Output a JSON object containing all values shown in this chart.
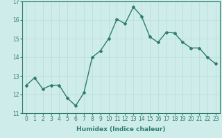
{
  "x": [
    0,
    1,
    2,
    3,
    4,
    5,
    6,
    7,
    8,
    9,
    10,
    11,
    12,
    13,
    14,
    15,
    16,
    17,
    18,
    19,
    20,
    21,
    22,
    23
  ],
  "y": [
    12.5,
    12.9,
    12.3,
    12.5,
    12.5,
    11.8,
    11.4,
    12.1,
    14.0,
    14.35,
    15.0,
    16.05,
    15.8,
    16.7,
    16.2,
    15.1,
    14.8,
    15.35,
    15.3,
    14.8,
    14.5,
    14.5,
    14.0,
    13.65
  ],
  "line_color": "#2e7d6e",
  "marker": "D",
  "marker_size": 2.0,
  "xlabel": "Humidex (Indice chaleur)",
  "xlim": [
    -0.5,
    23.5
  ],
  "ylim": [
    11.0,
    17.0
  ],
  "yticks": [
    11,
    12,
    13,
    14,
    15,
    16,
    17
  ],
  "xticks": [
    0,
    1,
    2,
    3,
    4,
    5,
    6,
    7,
    8,
    9,
    10,
    11,
    12,
    13,
    14,
    15,
    16,
    17,
    18,
    19,
    20,
    21,
    22,
    23
  ],
  "bg_color": "#ceecea",
  "grid_color": "#b8dbd9",
  "tick_label_fontsize": 5.5,
  "xlabel_fontsize": 6.5,
  "line_width": 1.0
}
